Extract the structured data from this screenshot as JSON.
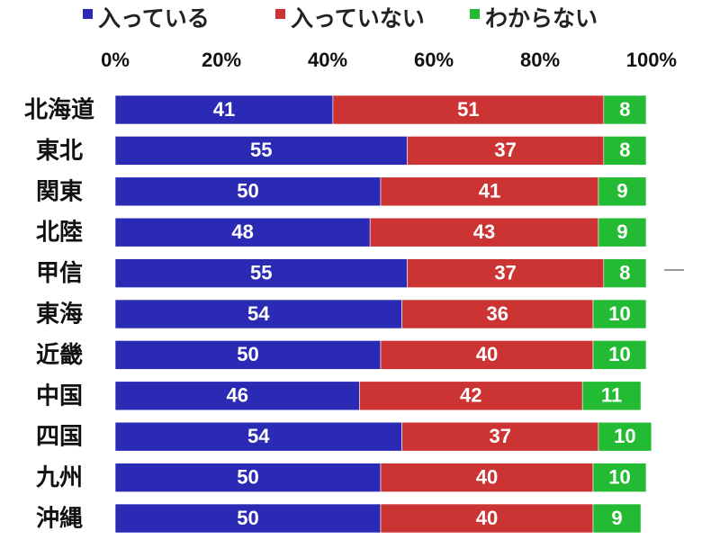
{
  "chart_data": {
    "type": "bar",
    "orientation": "horizontal",
    "stacked": true,
    "percent": true,
    "categories": [
      "北海道",
      "東北",
      "関東",
      "北陸",
      "甲信",
      "東海",
      "近畿",
      "中国",
      "四国",
      "九州",
      "沖縄"
    ],
    "series": [
      {
        "name": "入っている",
        "color": "#2a2ab4",
        "values": [
          41,
          55,
          50,
          48,
          55,
          54,
          50,
          46,
          54,
          50,
          50
        ]
      },
      {
        "name": "入っていない",
        "color": "#cc3333",
        "values": [
          51,
          37,
          41,
          43,
          37,
          36,
          40,
          42,
          37,
          40,
          40
        ]
      },
      {
        "name": "わからない",
        "color": "#22bb33",
        "values": [
          8,
          8,
          9,
          9,
          8,
          10,
          10,
          11,
          10,
          10,
          9
        ]
      }
    ],
    "xlim": [
      0,
      100
    ],
    "x_ticks": [
      "0%",
      "20%",
      "40%",
      "60%",
      "80%",
      "100%"
    ],
    "legend_position": "top",
    "grid": false
  }
}
